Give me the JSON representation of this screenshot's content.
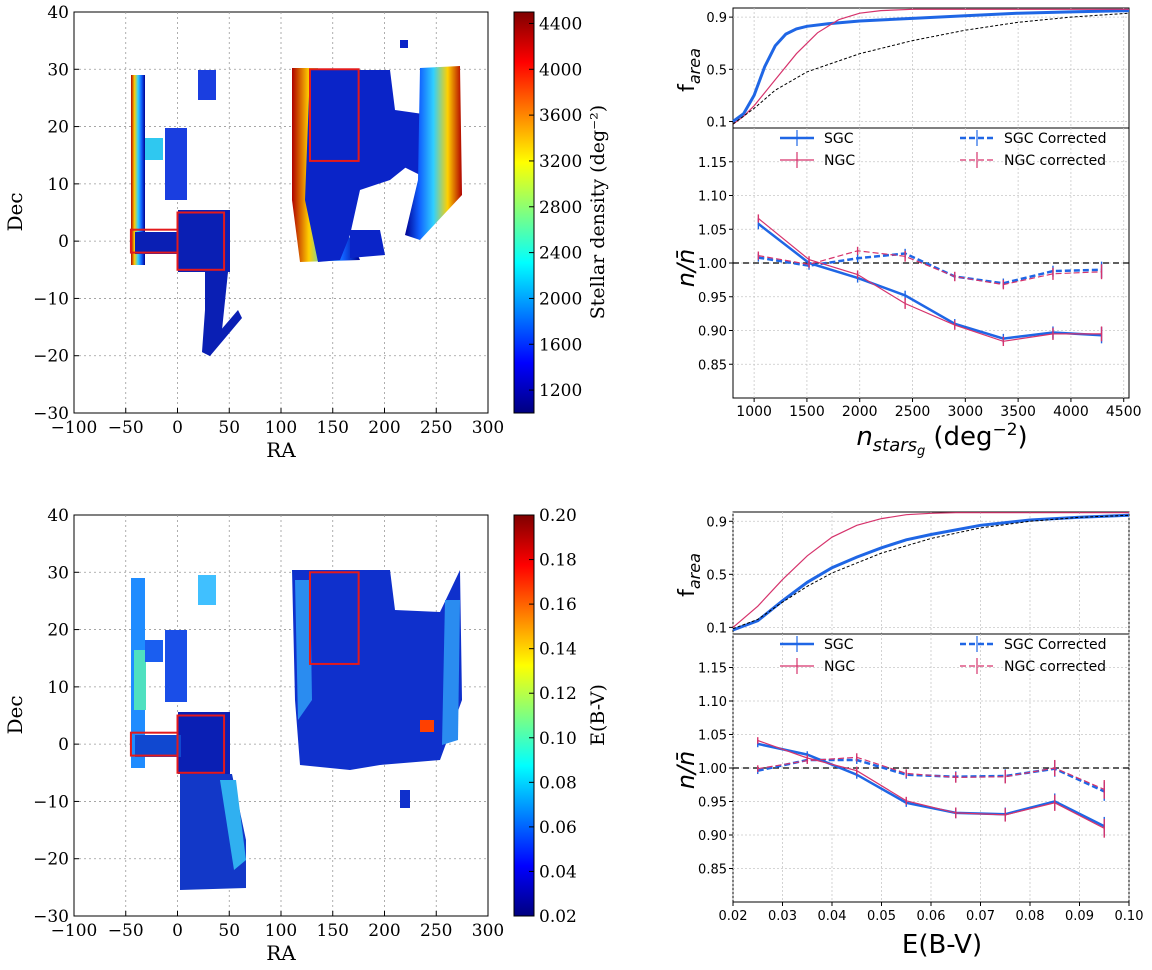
{
  "chart_data": [
    {
      "id": "map_stellar",
      "type": "scatter",
      "xlabel": "RA",
      "ylabel": "Dec",
      "xlim": [
        -100,
        300
      ],
      "ylim": [
        -30,
        40
      ],
      "xticks": [
        -100,
        -50,
        0,
        50,
        100,
        150,
        200,
        250,
        300
      ],
      "yticks": [
        -30,
        -20,
        -10,
        0,
        10,
        20,
        30,
        40
      ],
      "grid": true,
      "colorbar": {
        "label": "Stellar density (deg⁻²)",
        "range": [
          1000,
          4500
        ],
        "ticks": [
          1200,
          1600,
          2000,
          2400,
          2800,
          3200,
          3600,
          4000,
          4400
        ],
        "colormap": "jet"
      },
      "regions_drawn": [
        "SGC footprint",
        "NGC footprint"
      ],
      "boxes": [
        {
          "ra": [
            -45,
            0
          ],
          "dec": [
            -2,
            2
          ]
        },
        {
          "ra": [
            0,
            45
          ],
          "dec": [
            -5,
            5
          ]
        },
        {
          "ra": [
            128,
            175
          ],
          "dec": [
            14,
            30
          ]
        }
      ]
    },
    {
      "id": "map_ebv",
      "type": "scatter",
      "xlabel": "RA",
      "ylabel": "Dec",
      "xlim": [
        -100,
        300
      ],
      "ylim": [
        -30,
        40
      ],
      "xticks": [
        -100,
        -50,
        0,
        50,
        100,
        150,
        200,
        250,
        300
      ],
      "yticks": [
        -30,
        -20,
        -10,
        0,
        10,
        20,
        30,
        40
      ],
      "grid": true,
      "colorbar": {
        "label": "E(B-V)",
        "range": [
          0.02,
          0.2
        ],
        "ticks": [
          "0.02",
          "0.04",
          "0.06",
          "0.08",
          "0.10",
          "0.12",
          "0.14",
          "0.16",
          "0.18",
          "0.20"
        ],
        "colormap": "jet"
      },
      "boxes": [
        {
          "ra": [
            -45,
            0
          ],
          "dec": [
            -2,
            2
          ]
        },
        {
          "ra": [
            0,
            45
          ],
          "dec": [
            -5,
            5
          ]
        },
        {
          "ra": [
            128,
            175
          ],
          "dec": [
            14,
            30
          ]
        }
      ]
    },
    {
      "id": "farea_stars",
      "type": "line",
      "ylabel": "f",
      "ylabel_sub": "area",
      "xlim": [
        800,
        4550
      ],
      "ylim": [
        0.05,
        0.97
      ],
      "yticks": [
        "0.1",
        "0.5",
        "0.9"
      ],
      "grid": true,
      "series": [
        {
          "name": "SGC",
          "color": "#1f66e5",
          "x": [
            800,
            900,
            1000,
            1100,
            1200,
            1300,
            1400,
            1500,
            1700,
            2000,
            2500,
            3000,
            3500,
            4000,
            4550
          ],
          "y": [
            0.1,
            0.16,
            0.3,
            0.52,
            0.68,
            0.77,
            0.81,
            0.83,
            0.85,
            0.87,
            0.89,
            0.91,
            0.93,
            0.94,
            0.95
          ]
        },
        {
          "name": "NGC",
          "color": "#d6336c",
          "x": [
            800,
            900,
            1000,
            1200,
            1400,
            1600,
            1800,
            2000,
            2200,
            2500,
            3000,
            4550
          ],
          "y": [
            0.08,
            0.14,
            0.22,
            0.42,
            0.62,
            0.78,
            0.88,
            0.93,
            0.95,
            0.96,
            0.96,
            0.96
          ]
        },
        {
          "name": "",
          "color": "#000000",
          "dashed": true,
          "x": [
            800,
            1000,
            1200,
            1500,
            2000,
            2500,
            3000,
            3500,
            4000,
            4550
          ],
          "y": [
            0.08,
            0.2,
            0.34,
            0.48,
            0.62,
            0.72,
            0.8,
            0.86,
            0.9,
            0.93
          ]
        }
      ]
    },
    {
      "id": "ratio_stars",
      "type": "line",
      "xlabel": "n",
      "xlabel_sub": "stars",
      "xlabel_subsub": "g",
      "xlabel_unit": "(deg",
      "xlabel_exp": "−2",
      "xlabel_close": ")",
      "ylabel": "n/n̄",
      "xlim": [
        800,
        4550
      ],
      "ylim": [
        0.8,
        1.2
      ],
      "xticks": [
        1000,
        1500,
        2000,
        2500,
        3000,
        3500,
        4000,
        4500
      ],
      "yticks": [
        "0.85",
        "0.90",
        "0.95",
        "1.00",
        "1.05",
        "1.10",
        "1.15"
      ],
      "reference_line": 1.0,
      "grid": true,
      "legend_position": "top",
      "series": [
        {
          "name": "SGC",
          "color": "#1f66e5",
          "x": [
            1040,
            1520,
            1980,
            2430,
            2900,
            3360,
            3830,
            4290
          ],
          "y": [
            1.058,
            1.0,
            0.978,
            0.952,
            0.91,
            0.888,
            0.897,
            0.893
          ],
          "yerr": [
            0.008,
            0.006,
            0.007,
            0.007,
            0.007,
            0.007,
            0.009,
            0.012
          ]
        },
        {
          "name": "SGC Corrected",
          "color": "#1f66e5",
          "dashed": true,
          "x": [
            1040,
            1520,
            1980,
            2430,
            2900,
            3360,
            3830,
            4290
          ],
          "y": [
            1.008,
            0.996,
            1.007,
            1.014,
            0.98,
            0.97,
            0.988,
            0.99
          ],
          "yerr": [
            0.006,
            0.006,
            0.006,
            0.007,
            0.006,
            0.007,
            0.008,
            0.012
          ]
        },
        {
          "name": "NGC",
          "color": "#d6336c",
          "x": [
            1040,
            1520,
            1980,
            2430,
            2900,
            3360,
            3830,
            4290
          ],
          "y": [
            1.066,
            1.005,
            0.983,
            0.94,
            0.908,
            0.884,
            0.895,
            0.895
          ],
          "yerr": [
            0.006,
            0.005,
            0.006,
            0.008,
            0.007,
            0.007,
            0.009,
            0.011
          ]
        },
        {
          "name": "NGC corrected",
          "color": "#d6336c",
          "dashed": true,
          "x": [
            1040,
            1520,
            1980,
            2430,
            2900,
            3360,
            3830,
            4290
          ],
          "y": [
            1.011,
            0.998,
            1.018,
            1.01,
            0.98,
            0.968,
            0.984,
            0.987
          ],
          "yerr": [
            0.006,
            0.005,
            0.006,
            0.008,
            0.007,
            0.007,
            0.009,
            0.011
          ]
        }
      ]
    },
    {
      "id": "farea_ebv",
      "type": "line",
      "ylabel": "f",
      "ylabel_sub": "area",
      "xlim": [
        0.02,
        0.1
      ],
      "ylim": [
        0.05,
        0.97
      ],
      "yticks": [
        "0.1",
        "0.5",
        "0.9"
      ],
      "grid": true,
      "series": [
        {
          "name": "SGC",
          "color": "#1f66e5",
          "x": [
            0.02,
            0.025,
            0.03,
            0.035,
            0.04,
            0.045,
            0.05,
            0.055,
            0.06,
            0.07,
            0.08,
            0.09,
            0.1
          ],
          "y": [
            0.08,
            0.15,
            0.3,
            0.44,
            0.55,
            0.63,
            0.7,
            0.76,
            0.8,
            0.87,
            0.91,
            0.93,
            0.945
          ]
        },
        {
          "name": "NGC",
          "color": "#d6336c",
          "x": [
            0.02,
            0.025,
            0.03,
            0.035,
            0.04,
            0.045,
            0.05,
            0.055,
            0.06,
            0.065,
            0.07,
            0.1
          ],
          "y": [
            0.1,
            0.26,
            0.46,
            0.64,
            0.78,
            0.87,
            0.92,
            0.95,
            0.96,
            0.965,
            0.965,
            0.965
          ]
        },
        {
          "name": "",
          "color": "#000000",
          "dashed": true,
          "x": [
            0.02,
            0.025,
            0.03,
            0.035,
            0.04,
            0.05,
            0.06,
            0.07,
            0.08,
            0.09,
            0.1
          ],
          "y": [
            0.09,
            0.16,
            0.29,
            0.41,
            0.51,
            0.66,
            0.77,
            0.85,
            0.9,
            0.93,
            0.945
          ]
        }
      ]
    },
    {
      "id": "ratio_ebv",
      "type": "line",
      "xlabel": "E(B-V)",
      "ylabel": "n/n̄",
      "xlim": [
        0.02,
        0.1
      ],
      "ylim": [
        0.8,
        1.2
      ],
      "xticks": [
        "0.02",
        "0.03",
        "0.04",
        "0.05",
        "0.06",
        "0.07",
        "0.08",
        "0.09",
        "0.10"
      ],
      "yticks": [
        "0.85",
        "0.90",
        "0.95",
        "1.00",
        "1.05",
        "1.10",
        "1.15"
      ],
      "reference_line": 1.0,
      "grid": true,
      "legend_position": "top",
      "series": [
        {
          "name": "SGC",
          "color": "#1f66e5",
          "x": [
            0.025,
            0.035,
            0.045,
            0.055,
            0.065,
            0.075,
            0.085,
            0.095
          ],
          "y": [
            1.036,
            1.02,
            0.99,
            0.948,
            0.933,
            0.931,
            0.95,
            0.913
          ],
          "yerr": [
            0.005,
            0.005,
            0.006,
            0.006,
            0.008,
            0.01,
            0.012,
            0.014
          ]
        },
        {
          "name": "SGC Corrected",
          "color": "#1f66e5",
          "dashed": true,
          "x": [
            0.025,
            0.035,
            0.045,
            0.055,
            0.065,
            0.075,
            0.085,
            0.095
          ],
          "y": [
            0.996,
            1.012,
            1.012,
            0.99,
            0.987,
            0.988,
            0.999,
            0.965
          ],
          "yerr": [
            0.005,
            0.005,
            0.006,
            0.006,
            0.008,
            0.01,
            0.012,
            0.014
          ]
        },
        {
          "name": "NGC",
          "color": "#d6336c",
          "x": [
            0.025,
            0.035,
            0.045,
            0.055,
            0.065,
            0.075,
            0.085,
            0.095
          ],
          "y": [
            1.041,
            1.015,
            0.996,
            0.951,
            0.933,
            0.93,
            0.948,
            0.91
          ],
          "yerr": [
            0.005,
            0.005,
            0.006,
            0.006,
            0.008,
            0.01,
            0.012,
            0.014
          ]
        },
        {
          "name": "NGC corrected",
          "color": "#d6336c",
          "dashed": true,
          "x": [
            0.025,
            0.035,
            0.045,
            0.055,
            0.065,
            0.075,
            0.085,
            0.095
          ],
          "y": [
            0.999,
            1.011,
            1.016,
            0.992,
            0.986,
            0.987,
            1.0,
            0.968
          ],
          "yerr": [
            0.005,
            0.005,
            0.006,
            0.006,
            0.008,
            0.01,
            0.012,
            0.014
          ]
        }
      ]
    }
  ]
}
